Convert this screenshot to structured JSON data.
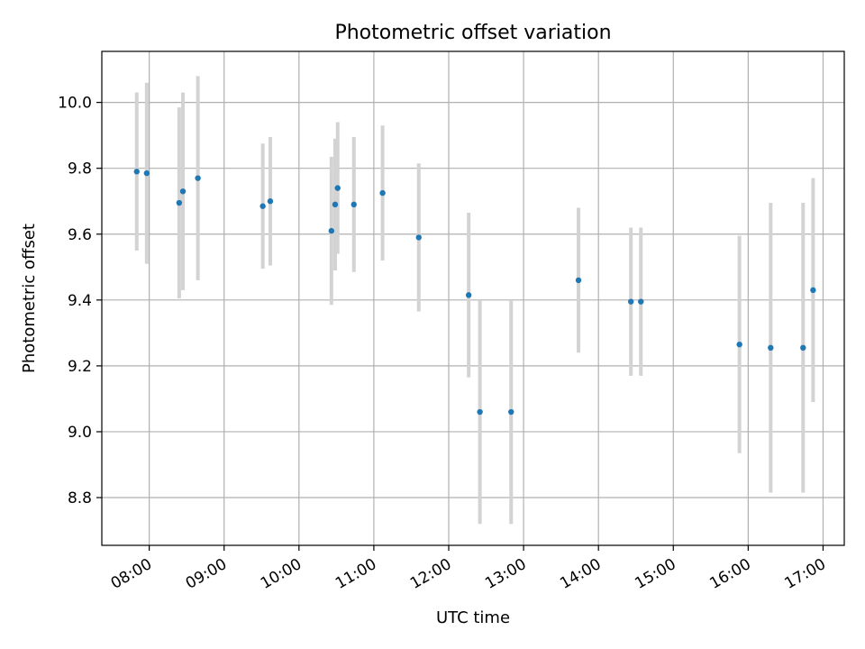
{
  "chart_data": {
    "type": "scatter",
    "title": "Photometric offset variation",
    "xlabel": "UTC time",
    "ylabel": "Photometric offset",
    "x_ticks": [
      "08:00",
      "09:00",
      "10:00",
      "11:00",
      "12:00",
      "13:00",
      "14:00",
      "15:00",
      "16:00",
      "17:00"
    ],
    "y_ticks": [
      "8.8",
      "9.0",
      "9.2",
      "9.4",
      "9.6",
      "9.8",
      "10.0"
    ],
    "xlim": [
      "07:22",
      "17:17"
    ],
    "ylim": [
      8.655,
      10.155
    ],
    "grid": true,
    "colors": {
      "point": "#1f77b4",
      "errorbar": "#d3d3d3",
      "grid": "#b0b0b0"
    },
    "points": [
      {
        "x": "07:50",
        "y": 9.79,
        "yerr": 0.24
      },
      {
        "x": "07:58",
        "y": 9.785,
        "yerr": 0.275
      },
      {
        "x": "08:24",
        "y": 9.695,
        "yerr": 0.29
      },
      {
        "x": "08:27",
        "y": 9.73,
        "yerr": 0.3
      },
      {
        "x": "08:39",
        "y": 9.77,
        "yerr": 0.31
      },
      {
        "x": "09:31",
        "y": 9.685,
        "yerr": 0.19
      },
      {
        "x": "09:37",
        "y": 9.7,
        "yerr": 0.195
      },
      {
        "x": "10:26",
        "y": 9.61,
        "yerr": 0.225
      },
      {
        "x": "10:29",
        "y": 9.69,
        "yerr": 0.2
      },
      {
        "x": "10:31",
        "y": 9.74,
        "yerr": 0.2
      },
      {
        "x": "10:44",
        "y": 9.69,
        "yerr": 0.205
      },
      {
        "x": "11:07",
        "y": 9.725,
        "yerr": 0.205
      },
      {
        "x": "11:36",
        "y": 9.59,
        "yerr": 0.225
      },
      {
        "x": "12:16",
        "y": 9.415,
        "yerr": 0.25
      },
      {
        "x": "12:25",
        "y": 9.06,
        "yerr": 0.34
      },
      {
        "x": "12:50",
        "y": 9.06,
        "yerr": 0.34
      },
      {
        "x": "13:44",
        "y": 9.46,
        "yerr": 0.22
      },
      {
        "x": "14:26",
        "y": 9.395,
        "yerr": 0.225
      },
      {
        "x": "14:34",
        "y": 9.395,
        "yerr": 0.225
      },
      {
        "x": "15:53",
        "y": 9.265,
        "yerr": 0.33
      },
      {
        "x": "16:18",
        "y": 9.255,
        "yerr": 0.44
      },
      {
        "x": "16:44",
        "y": 9.255,
        "yerr": 0.44
      },
      {
        "x": "16:52",
        "y": 9.43,
        "yerr": 0.34
      }
    ]
  }
}
